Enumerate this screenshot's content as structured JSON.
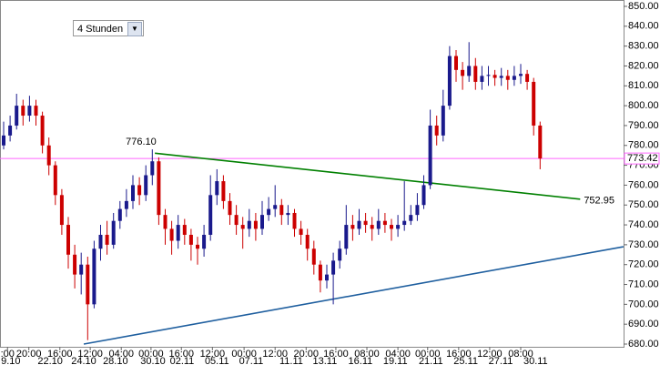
{
  "chart_data": {
    "type": "candlestick",
    "selector": "4 Stunden",
    "open": [
      780,
      785,
      790,
      800,
      795,
      800,
      795,
      780,
      770,
      755,
      740,
      725,
      715,
      720,
      700,
      728,
      735,
      730,
      742,
      748,
      752,
      760,
      755,
      765,
      772,
      745,
      738,
      732,
      740,
      735,
      730,
      728,
      735,
      755,
      762,
      752,
      745,
      740,
      738,
      742,
      738,
      745,
      748,
      750,
      745,
      746,
      738,
      735,
      728,
      720,
      712,
      715,
      722,
      728,
      740,
      738,
      742,
      740,
      738,
      742,
      740,
      738,
      740,
      742,
      745,
      750,
      760,
      790,
      785,
      800,
      825,
      818,
      815,
      820,
      812,
      815,
      815.5,
      814,
      815,
      813,
      815,
      816,
      812,
      790
    ],
    "high": [
      792,
      795,
      806,
      803,
      805,
      803,
      797,
      784,
      772,
      758,
      744,
      730,
      726,
      724,
      732,
      740,
      742,
      746,
      752,
      758,
      765,
      764,
      770,
      778,
      774,
      748,
      742,
      745,
      743,
      738,
      734,
      740,
      765,
      768,
      765,
      756,
      750,
      744,
      748,
      746,
      752,
      754,
      760,
      753,
      750,
      748,
      742,
      738,
      732,
      722,
      720,
      726,
      732,
      750,
      745,
      748,
      746,
      744,
      748,
      746,
      743,
      745,
      762,
      750,
      756,
      765,
      798,
      795,
      808,
      830,
      828,
      822,
      832,
      824,
      820,
      820,
      818,
      819,
      818,
      820,
      821,
      818,
      814,
      792
    ],
    "low": [
      778,
      782,
      788,
      790,
      792,
      790,
      776,
      765,
      750,
      735,
      718,
      708,
      705,
      682,
      698,
      722,
      725,
      728,
      738,
      744,
      748,
      750,
      752,
      760,
      740,
      730,
      725,
      728,
      730,
      722,
      720,
      724,
      732,
      750,
      748,
      740,
      735,
      728,
      734,
      732,
      735,
      742,
      744,
      740,
      740,
      734,
      730,
      722,
      715,
      706,
      708,
      700,
      718,
      725,
      732,
      735,
      736,
      732,
      735,
      736,
      732,
      734,
      737,
      740,
      742,
      748,
      758,
      780,
      782,
      798,
      812,
      808,
      812,
      808,
      808,
      810,
      810,
      810,
      808,
      810,
      811,
      808,
      785,
      768
    ],
    "close": [
      785,
      790,
      800,
      795,
      800,
      795,
      780,
      770,
      755,
      740,
      725,
      715,
      720,
      700,
      728,
      735,
      730,
      742,
      748,
      752,
      760,
      755,
      765,
      772,
      745,
      738,
      732,
      740,
      735,
      730,
      728,
      735,
      755,
      762,
      752,
      745,
      740,
      738,
      742,
      738,
      745,
      748,
      750,
      745,
      746,
      738,
      735,
      728,
      720,
      712,
      715,
      722,
      728,
      740,
      738,
      742,
      740,
      738,
      742,
      740,
      738,
      740,
      742,
      745,
      750,
      760,
      790,
      785,
      800,
      825,
      818,
      815,
      820,
      812,
      815,
      815.5,
      814,
      815,
      813,
      815,
      816,
      812,
      790,
      773.42
    ],
    "up_color": "#1a1a8c",
    "down_color": "#cc0000",
    "ylim": [
      680,
      850
    ],
    "yticks": [
      {
        "value": 680,
        "label": "680.00"
      },
      {
        "value": 690,
        "label": "690.00"
      },
      {
        "value": 700,
        "label": "700.00"
      },
      {
        "value": 710,
        "label": "710.00"
      },
      {
        "value": 720,
        "label": "720.00"
      },
      {
        "value": 730,
        "label": "730.00"
      },
      {
        "value": 740,
        "label": "740.00"
      },
      {
        "value": 750,
        "label": "750.00"
      },
      {
        "value": 760,
        "label": "760.00"
      },
      {
        "value": 770,
        "label": "770.00"
      },
      {
        "value": 780,
        "label": "780.00"
      },
      {
        "value": 790,
        "label": "790.00"
      },
      {
        "value": 800,
        "label": "800.00"
      },
      {
        "value": 810,
        "label": "810.00"
      },
      {
        "value": 820,
        "label": "820.00"
      },
      {
        "value": 830,
        "label": "830.00"
      },
      {
        "value": 840,
        "label": "840.00"
      },
      {
        "value": 850,
        "label": "850.00"
      }
    ],
    "xticks": [
      {
        "value": 0.6,
        "label": ":00"
      },
      {
        "value": 3.9,
        "label": "20:00"
      },
      {
        "value": 8.7,
        "label": "16:00"
      },
      {
        "value": 13.4,
        "label": "12:00"
      },
      {
        "value": 18.2,
        "label": "04:00"
      },
      {
        "value": 22.8,
        "label": "00:00"
      },
      {
        "value": 27.5,
        "label": "16:00"
      },
      {
        "value": 32.3,
        "label": "12:00"
      },
      {
        "value": 37.2,
        "label": "00:00"
      },
      {
        "value": 42.0,
        "label": "12:00"
      },
      {
        "value": 46.8,
        "label": "20:00"
      },
      {
        "value": 51.4,
        "label": "16:00"
      },
      {
        "value": 56.2,
        "label": "08:00"
      },
      {
        "value": 61.0,
        "label": "04:00"
      },
      {
        "value": 65.6,
        "label": "00:00"
      },
      {
        "value": 70.4,
        "label": "16:00"
      },
      {
        "value": 75.2,
        "label": "12:00"
      },
      {
        "value": 80.0,
        "label": "08:00"
      }
    ],
    "xticks_dates": [
      {
        "value": 1.1,
        "label": "9.10"
      },
      {
        "value": 7.2,
        "label": "22.10"
      },
      {
        "value": 12.4,
        "label": "24.10"
      },
      {
        "value": 17.3,
        "label": "28.10"
      },
      {
        "value": 23.1,
        "label": "30.10"
      },
      {
        "value": 27.6,
        "label": "02.11"
      },
      {
        "value": 33.0,
        "label": "05.11"
      },
      {
        "value": 38.3,
        "label": "07.11"
      },
      {
        "value": 44.5,
        "label": "11.11"
      },
      {
        "value": 49.7,
        "label": "13.11"
      },
      {
        "value": 55.2,
        "label": "16.11"
      },
      {
        "value": 60.6,
        "label": "19.11"
      },
      {
        "value": 66.1,
        "label": "21.11"
      },
      {
        "value": 71.5,
        "label": "25.11"
      },
      {
        "value": 76.9,
        "label": "27.11"
      },
      {
        "value": 82.3,
        "label": "30.11"
      }
    ],
    "last_price": {
      "value": 773.42,
      "label": "773.42",
      "color": "#ff66ff"
    },
    "trendlines": [
      {
        "color": "#008000",
        "x": [
          23.4,
          89.2
        ],
        "y": [
          776.1,
          752.95
        ],
        "labels": [
          "776.10",
          "752.95"
        ]
      },
      {
        "color": "#1f5f9f",
        "x": [
          12.4,
          95.9
        ],
        "y": [
          680,
          729
        ]
      }
    ]
  }
}
